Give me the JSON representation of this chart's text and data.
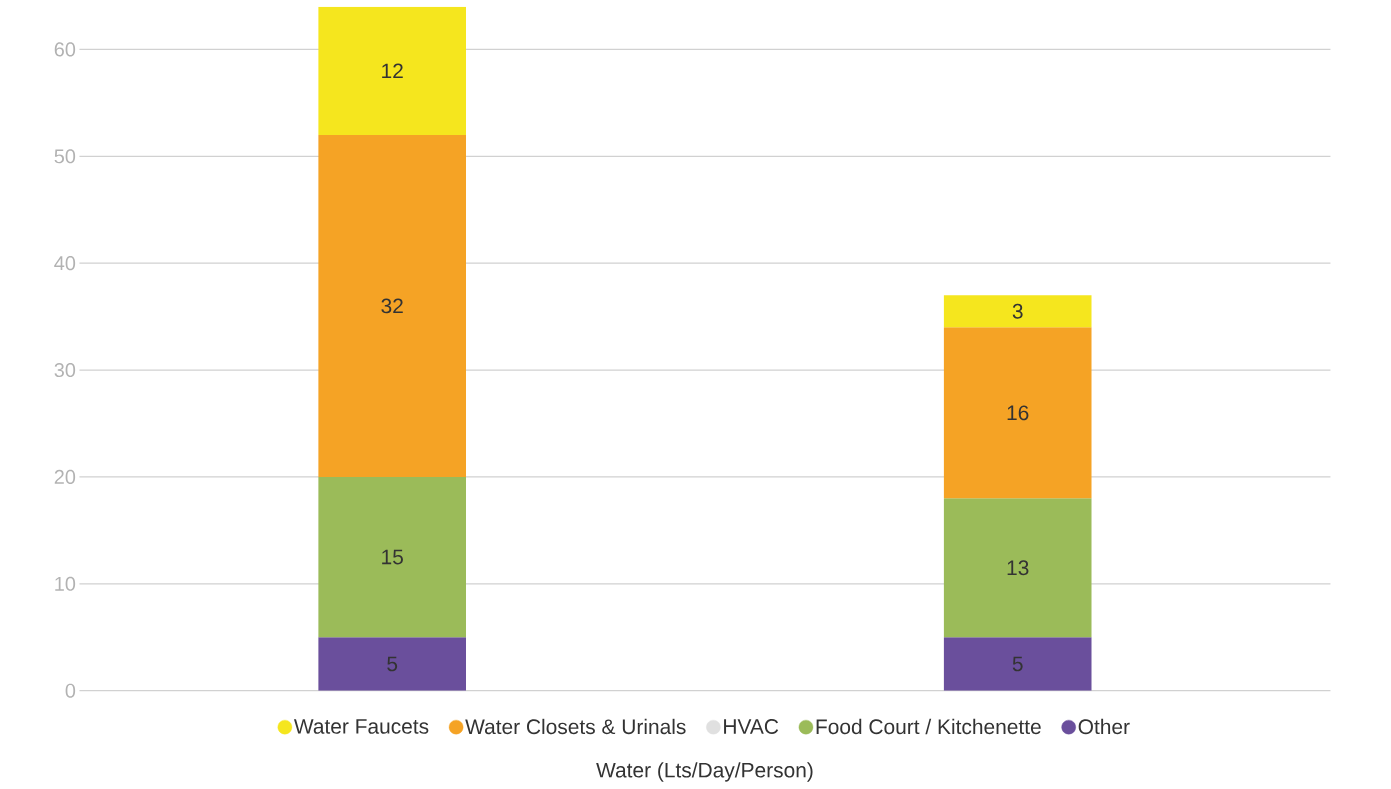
{
  "chart_data": {
    "type": "bar",
    "stacked": true,
    "xlabel": "Water (Lts/Day/Person)",
    "categories": [
      null,
      null
    ],
    "series": [
      {
        "name": "Other",
        "color": "#6a4f9c",
        "values": [
          5,
          5
        ]
      },
      {
        "name": "Food Court / Kitchenette",
        "color": "#9bbb59",
        "values": [
          15,
          13
        ]
      },
      {
        "name": "HVAC",
        "color": "#e0e0e0",
        "values": [
          null,
          null
        ]
      },
      {
        "name": "Water Closets & Urinals",
        "color": "#f5a325",
        "values": [
          32,
          16
        ]
      },
      {
        "name": "Water Faucets",
        "color": "#f5e61e",
        "values": [
          12,
          3
        ]
      }
    ],
    "ylim": [
      0,
      64
    ],
    "yticks": [
      0,
      10,
      20,
      30,
      40,
      50,
      60
    ],
    "grid": "y",
    "data_labels": true,
    "legend": "bottom"
  }
}
